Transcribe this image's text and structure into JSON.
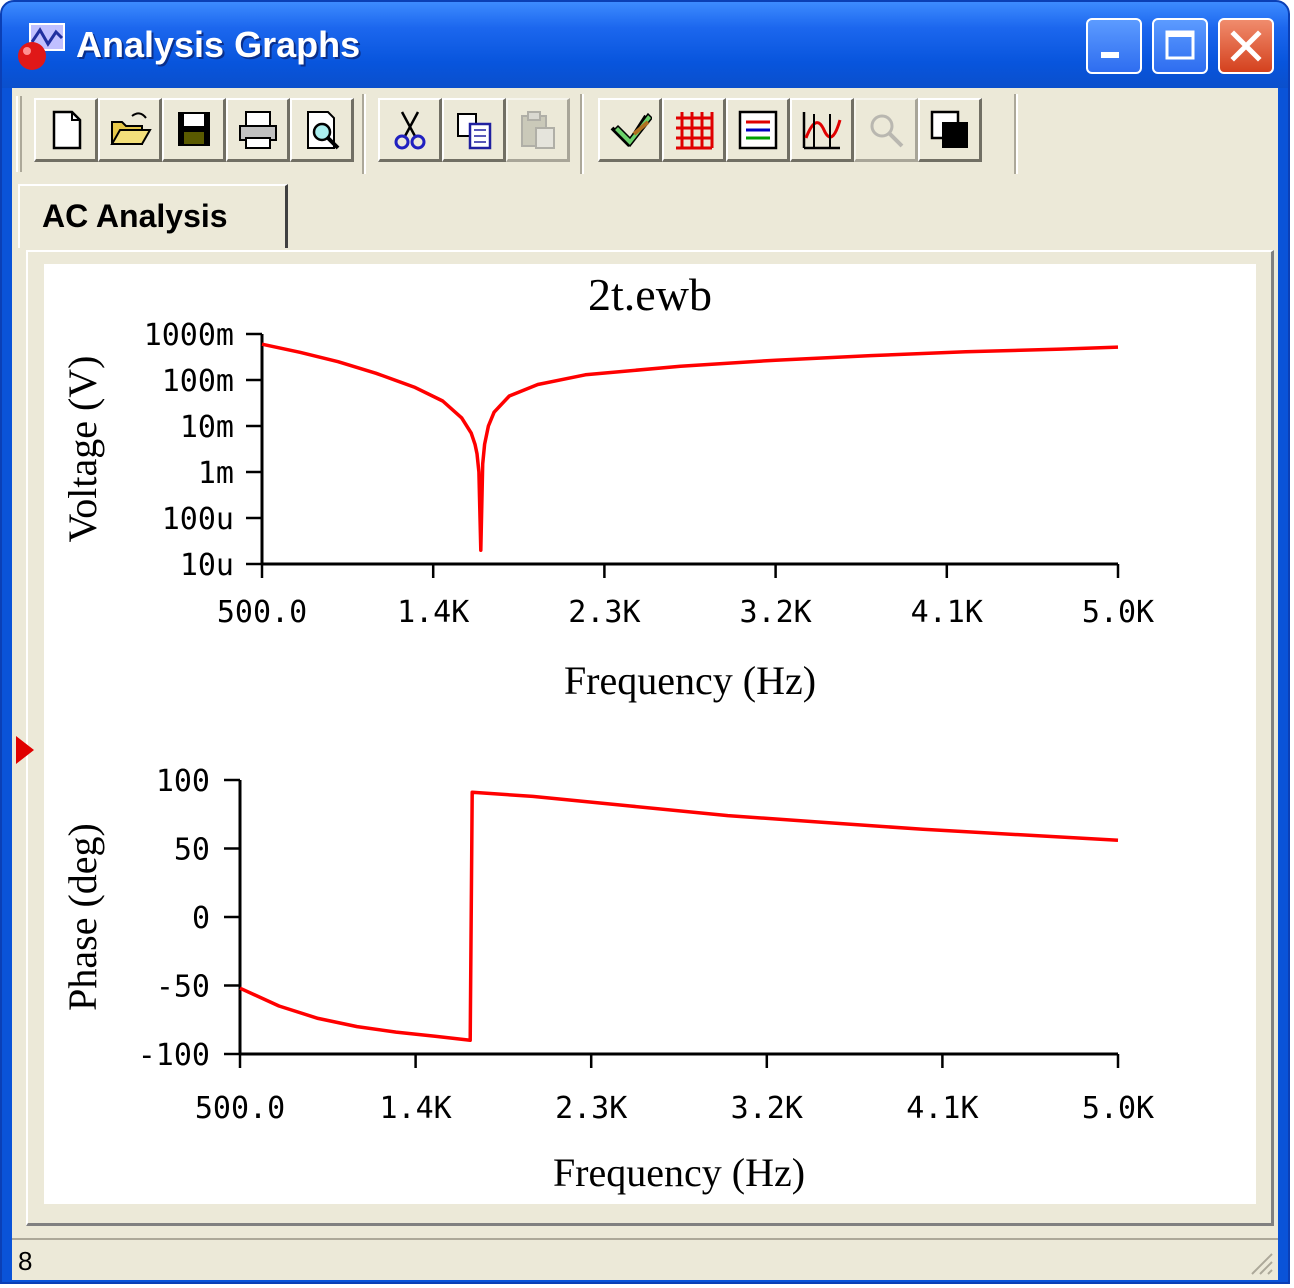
{
  "window": {
    "title": "Analysis Graphs"
  },
  "toolbar": {
    "buttons": [
      {
        "name": "new-icon"
      },
      {
        "name": "open-icon"
      },
      {
        "name": "save-icon"
      },
      {
        "name": "print-icon"
      },
      {
        "name": "print-preview-icon"
      },
      {
        "name": "cut-icon"
      },
      {
        "name": "copy-icon"
      },
      {
        "name": "paste-icon",
        "disabled": true
      },
      {
        "name": "properties-icon"
      },
      {
        "name": "grid-icon"
      },
      {
        "name": "legend-icon"
      },
      {
        "name": "cursors-icon"
      },
      {
        "name": "zoom-icon",
        "disabled": true
      },
      {
        "name": "reverse-colors-icon"
      }
    ]
  },
  "tabs": [
    {
      "label": "AC Analysis"
    }
  ],
  "status": {
    "text": "8"
  },
  "colors": {
    "trace": "#ff0000",
    "title_bar": "#0a53d8",
    "panel": "#ece9d8"
  },
  "chart_data": [
    {
      "type": "line",
      "title": "2t.ewb",
      "xlabel": "Frequency (Hz)",
      "ylabel": "Voltage (V)",
      "y_scale": "log",
      "xlim": [
        500,
        5000
      ],
      "ylim": [
        1e-05,
        1
      ],
      "xticks": [
        500,
        1400,
        2300,
        3200,
        4100,
        5000
      ],
      "xtick_labels": [
        "500.0",
        "1.4K",
        "2.3K",
        "3.2K",
        "4.1K",
        "5.0K"
      ],
      "yticks": [
        1,
        0.1,
        0.01,
        0.001,
        0.0001,
        1e-05
      ],
      "ytick_labels": [
        "1000m",
        "100m",
        "10m",
        "1m",
        "100u",
        "10u"
      ],
      "grid": false,
      "series": [
        {
          "x": [
            500,
            700,
            900,
            1100,
            1300,
            1450,
            1550,
            1600,
            1620,
            1630,
            1640,
            1650,
            1660,
            1670,
            1690,
            1720,
            1800,
            1950,
            2200,
            2700,
            3200,
            3700,
            4200,
            4700,
            5000
          ],
          "y": [
            0.6,
            0.4,
            0.25,
            0.14,
            0.07,
            0.035,
            0.015,
            0.007,
            0.004,
            0.0025,
            0.001,
            2e-05,
            0.0015,
            0.004,
            0.01,
            0.02,
            0.045,
            0.08,
            0.13,
            0.2,
            0.27,
            0.34,
            0.41,
            0.47,
            0.52
          ]
        }
      ]
    },
    {
      "type": "line",
      "xlabel": "Frequency (Hz)",
      "ylabel": "Phase (deg)",
      "xlim": [
        500,
        5000
      ],
      "ylim": [
        -100,
        100
      ],
      "xticks": [
        500,
        1400,
        2300,
        3200,
        4100,
        5000
      ],
      "xtick_labels": [
        "500.0",
        "1.4K",
        "2.3K",
        "3.2K",
        "4.1K",
        "5.0K"
      ],
      "yticks": [
        100,
        50,
        0,
        -50,
        -100
      ],
      "ytick_labels": [
        "100",
        "50",
        "0",
        "-50",
        "-100"
      ],
      "grid": false,
      "series": [
        {
          "x": [
            500,
            700,
            900,
            1100,
            1300,
            1500,
            1680,
            1690,
            2000,
            2500,
            3000,
            3500,
            4000,
            4500,
            5000
          ],
          "y": [
            -52,
            -65,
            -74,
            -80,
            -84,
            -87,
            -90,
            91,
            88,
            81,
            74,
            69,
            64,
            60,
            56
          ]
        }
      ]
    }
  ]
}
